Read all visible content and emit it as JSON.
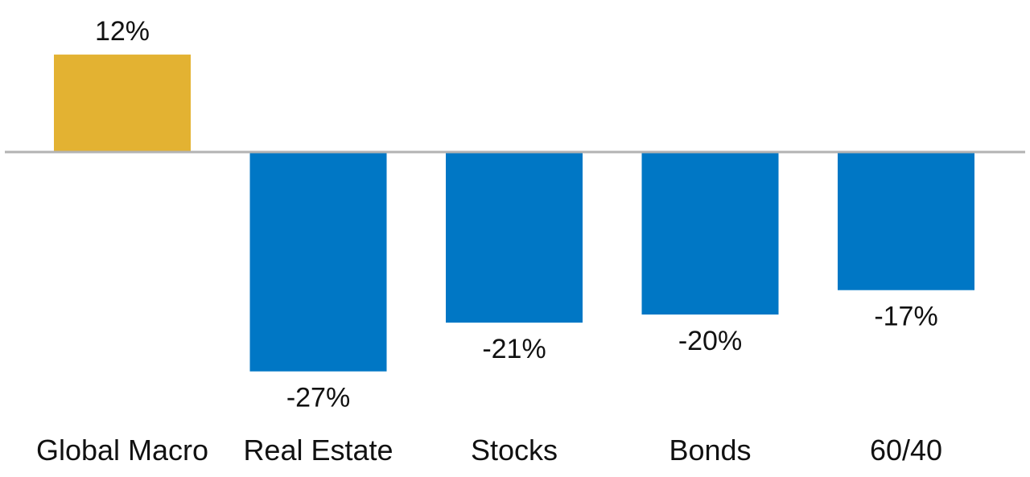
{
  "chart_data": {
    "type": "bar",
    "title": "",
    "xlabel": "",
    "ylabel": "",
    "categories": [
      "Global Macro",
      "Real Estate",
      "Stocks",
      "Bonds",
      "60/40"
    ],
    "values": [
      12,
      -27,
      -21,
      -20,
      -17
    ],
    "data_labels": [
      "12%",
      "-27%",
      "-21%",
      "-20%",
      "-17%"
    ],
    "unit": "%",
    "ylim": [
      -30,
      14
    ],
    "grid": false,
    "legend": "none",
    "colors": {
      "positive": "#E3B232",
      "negative": "#0077C5",
      "baseline": "#B3B3B3"
    }
  }
}
